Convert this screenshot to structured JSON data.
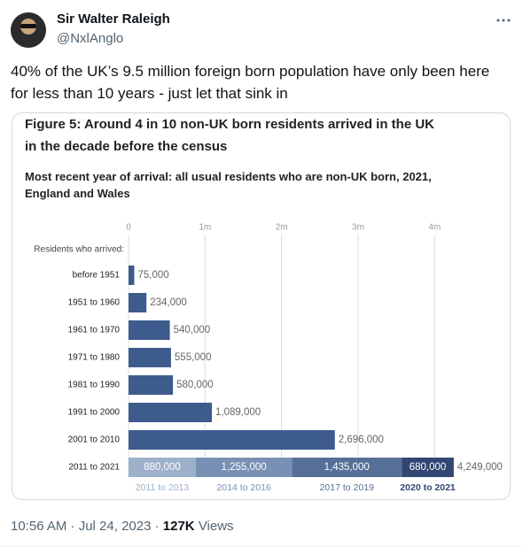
{
  "tweet": {
    "name": "Sir Walter Raleigh",
    "handle": "@NxlAnglo",
    "text": "40% of the UK’s 9.5 million foreign born population have only been here for less than 10 years - just let that sink in",
    "timestamp": "10:56 AM · Jul 24, 2023",
    "separator": "·",
    "views": "127K",
    "views_label": "Views"
  },
  "chart_data": {
    "type": "bar",
    "orientation": "horizontal",
    "title": "Figure 5: Around 4 in 10 non-UK born residents arrived in the UK in the decade before the census",
    "subtitle": "Most recent year of arrival: all usual residents who are non-UK born, 2021, England and Wales",
    "y_label": "Residents who arrived:",
    "categories": [
      "before 1951",
      "1951 to 1960",
      "1961 to 1970",
      "1971 to 1980",
      "1981 to 1990",
      "1991 to 2000",
      "2001 to 2010",
      "2011 to 2021"
    ],
    "values": [
      75000,
      234000,
      540000,
      555000,
      580000,
      1089000,
      2696000,
      4249000
    ],
    "value_labels": [
      "75,000",
      "234,000",
      "540,000",
      "555,000",
      "580,000",
      "1,089,000",
      "2,696,000",
      "4,249,000"
    ],
    "color": "#3e5b8e",
    "stack": {
      "category": 7,
      "segments": [
        {
          "name": "2011 to 2013",
          "value": 880000,
          "value_label": "880,000",
          "color": "#9db0ca"
        },
        {
          "name": "2014 to 2016",
          "value": 1255000,
          "value_label": "1,255,000",
          "color": "#7890b3"
        },
        {
          "name": "2017 to 2019",
          "value": 1435000,
          "value_label": "1,435,000",
          "color": "#566f98"
        },
        {
          "name": "2020 to 2021",
          "value": 680000,
          "value_label": "680,000",
          "color": "#314672"
        }
      ]
    },
    "xlim": [
      0,
      4900000
    ],
    "xticks": [
      0,
      {
        "value": 1000000,
        "label": "1m"
      },
      {
        "value": 2000000,
        "label": "2m"
      },
      {
        "value": 3000000,
        "label": "3m"
      },
      {
        "value": 4000000,
        "label": "4m"
      }
    ],
    "grid": true
  }
}
